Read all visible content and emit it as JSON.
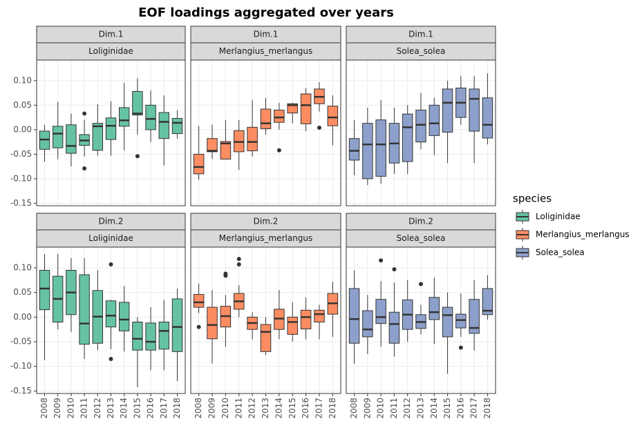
{
  "chart_data": {
    "type": "box",
    "title": "EOF loadings aggregated over years",
    "legend_title": "species",
    "categories": [
      "2008",
      "2009",
      "2010",
      "2011",
      "2012",
      "2013",
      "2014",
      "2015",
      "2016",
      "2017",
      "2018"
    ],
    "series": [
      {
        "name": "Loliginidae",
        "color": "#66C2A5"
      },
      {
        "name": "Merlangius_merlangus",
        "color": "#FC8D62"
      },
      {
        "name": "Solea_solea",
        "color": "#8DA0CB"
      }
    ],
    "ylim": [
      -0.155,
      0.142
    ],
    "yticks": [
      {
        "value": -0.15,
        "label": "-0.15"
      },
      {
        "value": -0.1,
        "label": "-0.10"
      },
      {
        "value": -0.05,
        "label": "-0.05"
      },
      {
        "value": 0,
        "label": "0.00"
      },
      {
        "value": 0.05,
        "label": "0.05"
      },
      {
        "value": 0.1,
        "label": "0.10"
      }
    ],
    "grid": true,
    "panels": [
      {
        "row_label": "Dim.1",
        "column_label": "Loliginidae",
        "whisker_low": [
          -0.065,
          -0.06,
          -0.075,
          -0.055,
          -0.053,
          -0.053,
          -0.042,
          -0.01,
          -0.025,
          -0.073,
          -0.018
        ],
        "q1": [
          -0.04,
          -0.037,
          -0.048,
          -0.032,
          -0.042,
          -0.02,
          0.007,
          0.03,
          0,
          -0.018,
          -0.008
        ],
        "median": [
          -0.02,
          -0.008,
          -0.033,
          -0.022,
          0.007,
          0.008,
          0.019,
          0.033,
          0.022,
          0.016,
          0.014
        ],
        "q3": [
          -0.003,
          0.007,
          0.01,
          -0.01,
          0.013,
          0.024,
          0.045,
          0.078,
          0.05,
          0.035,
          0.023
        ],
        "whisker_high": [
          0.01,
          0.057,
          0.033,
          0.02,
          0.052,
          0.058,
          0.095,
          0.105,
          0.08,
          0.07,
          0.04
        ],
        "outliers": [
          [],
          [],
          [],
          [
            0.033,
            -0.079
          ],
          [],
          [],
          [],
          [
            -0.054
          ],
          [],
          [],
          []
        ]
      },
      {
        "row_label": "Dim.1",
        "column_label": "Merlangius_merlangus",
        "whisker_low": [
          -0.102,
          -0.06,
          -0.06,
          -0.082,
          -0.055,
          -0.01,
          0,
          0.013,
          -0.003,
          0.037,
          -0.032
        ],
        "q1": [
          -0.09,
          -0.045,
          -0.06,
          -0.045,
          -0.043,
          0.002,
          0.015,
          0.034,
          0.012,
          0.053,
          0.008
        ],
        "median": [
          -0.076,
          -0.043,
          -0.028,
          -0.025,
          -0.025,
          0.013,
          0.025,
          0.05,
          0.05,
          0.067,
          0.025
        ],
        "q3": [
          -0.05,
          -0.018,
          -0.024,
          -0.002,
          0.005,
          0.042,
          0.04,
          0.053,
          0.073,
          0.083,
          0.048
        ],
        "whisker_high": [
          0.008,
          0.01,
          0.02,
          0.02,
          0.06,
          0.065,
          0.055,
          0.055,
          0.085,
          0.097,
          0.07
        ],
        "outliers": [
          [],
          [],
          [],
          [],
          [],
          [],
          [
            -0.042
          ],
          [],
          [],
          [
            0.004
          ],
          []
        ]
      },
      {
        "row_label": "Dim.1",
        "column_label": "Solea_solea",
        "whisker_low": [
          -0.093,
          -0.113,
          -0.11,
          -0.09,
          -0.09,
          -0.04,
          -0.052,
          -0.068,
          0.01,
          -0.068,
          -0.03
        ],
        "q1": [
          -0.062,
          -0.1,
          -0.095,
          -0.068,
          -0.065,
          -0.025,
          -0.012,
          -0.005,
          0.025,
          -0.003,
          -0.017
        ],
        "median": [
          -0.043,
          -0.03,
          -0.03,
          -0.028,
          0.005,
          0.01,
          0.013,
          0.055,
          0.055,
          0.063,
          0.01
        ],
        "q3": [
          -0.018,
          0.013,
          0.02,
          0.013,
          0.032,
          0.04,
          0.05,
          0.083,
          0.085,
          0.083,
          0.065
        ],
        "whisker_high": [
          0.02,
          0.045,
          0.06,
          0.045,
          0.05,
          0.075,
          0.065,
          0.1,
          0.11,
          0.11,
          0.115
        ],
        "outliers": [
          [],
          [],
          [],
          [],
          [],
          [],
          [],
          [],
          [],
          [],
          []
        ]
      },
      {
        "row_label": "Dim.2",
        "column_label": "Loliginidae",
        "whisker_low": [
          -0.087,
          -0.025,
          -0.03,
          -0.085,
          -0.067,
          -0.065,
          -0.07,
          -0.142,
          -0.108,
          -0.108,
          -0.13
        ],
        "q1": [
          0.015,
          -0.01,
          0.005,
          -0.055,
          -0.053,
          -0.02,
          -0.028,
          -0.067,
          -0.067,
          -0.065,
          -0.07
        ],
        "median": [
          0.058,
          0.037,
          0.05,
          -0.013,
          0.001,
          0.003,
          -0.005,
          -0.044,
          -0.05,
          -0.028,
          -0.02
        ],
        "q3": [
          0.095,
          0.083,
          0.095,
          0.086,
          0.054,
          0.033,
          0.03,
          -0.01,
          -0.012,
          -0.01,
          0.037
        ],
        "whisker_high": [
          0.128,
          0.128,
          0.12,
          0.12,
          0.095,
          0.035,
          0.063,
          0,
          0.02,
          0.035,
          0.058
        ],
        "outliers": [
          [],
          [],
          [],
          [],
          [],
          [
            0.107,
            -0.085
          ],
          [],
          [],
          [],
          [],
          []
        ]
      },
      {
        "row_label": "Dim.2",
        "column_label": "Merlangius_merlangus",
        "whisker_low": [
          0.008,
          -0.094,
          -0.06,
          0,
          -0.045,
          -0.077,
          -0.045,
          -0.05,
          -0.045,
          -0.045,
          -0.04
        ],
        "q1": [
          0.02,
          -0.044,
          -0.02,
          0.016,
          -0.025,
          -0.07,
          -0.025,
          -0.035,
          -0.024,
          -0.01,
          0.006
        ],
        "median": [
          0.03,
          -0.016,
          0.002,
          0.032,
          -0.012,
          -0.03,
          -0.003,
          -0.01,
          0,
          0.006,
          0.028
        ],
        "q3": [
          0.046,
          0.02,
          0.022,
          0.048,
          0,
          -0.015,
          0.016,
          0,
          0.014,
          0.014,
          0.048
        ],
        "whisker_high": [
          0.068,
          0.055,
          0.045,
          0.065,
          0.01,
          0,
          0.055,
          0.03,
          0.04,
          0.025,
          0.072
        ],
        "outliers": [
          [
            -0.02
          ],
          [],
          [
            0.088,
            0.084
          ],
          [
            0.118,
            0.107
          ],
          [],
          [],
          [],
          [],
          [],
          [],
          []
        ]
      },
      {
        "row_label": "Dim.2",
        "column_label": "Solea_solea",
        "whisker_low": [
          -0.095,
          -0.075,
          -0.06,
          -0.08,
          -0.05,
          -0.035,
          -0.055,
          -0.115,
          -0.04,
          -0.068,
          -0.005
        ],
        "q1": [
          -0.053,
          -0.04,
          -0.013,
          -0.053,
          -0.025,
          -0.023,
          -0.005,
          -0.04,
          -0.022,
          -0.033,
          0.005
        ],
        "median": [
          -0.004,
          -0.025,
          0,
          -0.014,
          0.005,
          -0.01,
          0.01,
          0.004,
          -0.006,
          -0.022,
          0.013
        ],
        "q3": [
          0.058,
          0.013,
          0.036,
          0.01,
          0.035,
          0.005,
          0.04,
          0.02,
          0.006,
          0.036,
          0.058
        ],
        "whisker_high": [
          0.095,
          0.045,
          0.073,
          0.07,
          0.075,
          0.025,
          0.08,
          0.05,
          0.048,
          0.075,
          0.085
        ],
        "outliers": [
          [],
          [],
          [
            0.115
          ],
          [
            0.097
          ],
          [],
          [
            0.067
          ],
          [],
          [],
          [
            -0.062
          ],
          [],
          []
        ]
      }
    ]
  }
}
